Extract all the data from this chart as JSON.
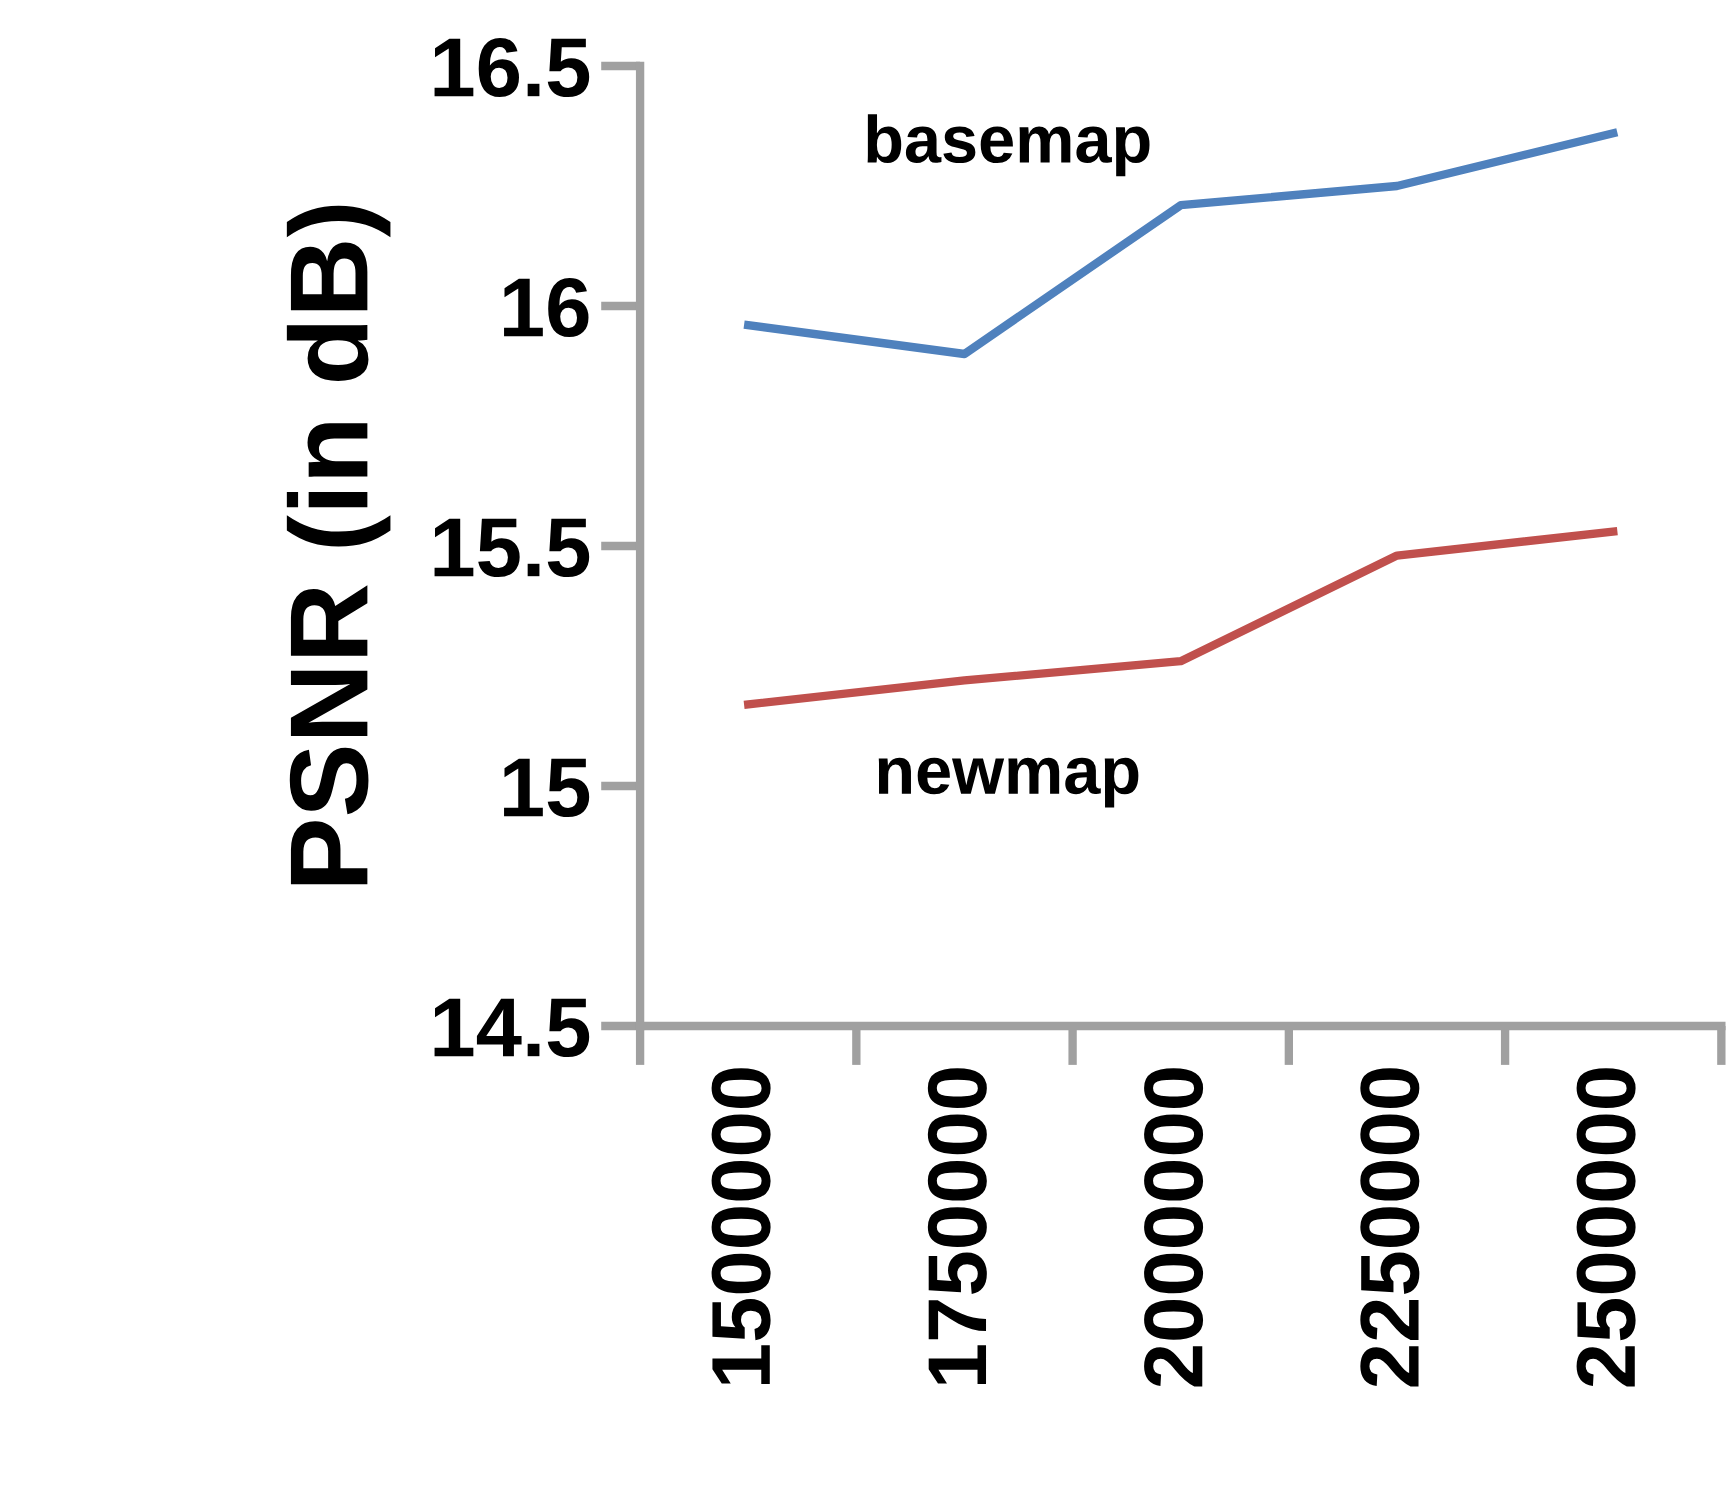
{
  "chart_data": {
    "type": "line",
    "ylabel": "PSNR (in dB)",
    "categories": [
      "1500000",
      "1750000",
      "2000000",
      "2250000",
      "2500000"
    ],
    "series": [
      {
        "name": "basemap",
        "color": "#4f81bd",
        "values": [
          15.96,
          15.9,
          16.21,
          16.25,
          16.36
        ]
      },
      {
        "name": "newmap",
        "color": "#c0504d",
        "values": [
          15.17,
          15.22,
          15.26,
          15.48,
          15.53
        ]
      }
    ],
    "ylim": [
      14.5,
      16.5
    ],
    "yticks": [
      14.5,
      15,
      15.5,
      16,
      16.5
    ],
    "grid": false,
    "legend": false,
    "marker": "none",
    "line_style": "solid"
  }
}
